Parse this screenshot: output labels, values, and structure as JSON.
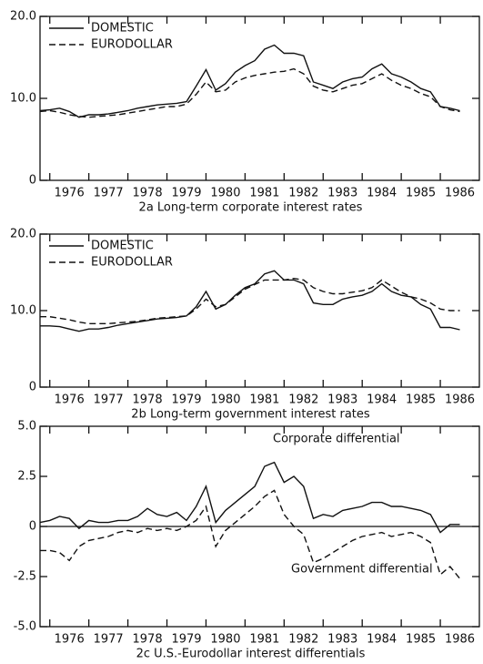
{
  "chart_data": [
    {
      "type": "line",
      "title": "2a Long-term corporate interest rates",
      "x": [
        1975.75,
        1976,
        1976.25,
        1976.5,
        1976.75,
        1977,
        1977.25,
        1977.5,
        1977.75,
        1978,
        1978.25,
        1978.5,
        1978.75,
        1979,
        1979.25,
        1979.5,
        1979.75,
        1980,
        1980.25,
        1980.5,
        1980.75,
        1981,
        1981.25,
        1981.5,
        1981.75,
        1982,
        1982.25,
        1982.5,
        1982.75,
        1983,
        1983.25,
        1983.5,
        1983.75,
        1984,
        1984.25,
        1984.5,
        1984.75,
        1985,
        1985.25,
        1985.5,
        1985.75,
        1986,
        1986.25,
        1986.5
      ],
      "series": [
        {
          "name": "DOMESTIC",
          "color": "#111111",
          "dash": false,
          "values": [
            8.5,
            8.6,
            8.8,
            8.4,
            7.7,
            8.0,
            8.0,
            8.1,
            8.3,
            8.5,
            8.8,
            9.0,
            9.2,
            9.3,
            9.4,
            9.6,
            11.5,
            13.5,
            11.0,
            11.8,
            13.2,
            14.0,
            14.6,
            16.0,
            16.5,
            15.5,
            15.5,
            15.2,
            12.0,
            11.6,
            11.2,
            12.0,
            12.4,
            12.6,
            13.6,
            14.2,
            13.0,
            12.6,
            12.0,
            11.2,
            10.8,
            9.0,
            8.8,
            8.5
          ]
        },
        {
          "name": "EURODOLLAR",
          "color": "#111111",
          "dash": true,
          "values": [
            8.4,
            8.5,
            8.3,
            8.0,
            7.8,
            7.7,
            7.8,
            7.9,
            8.0,
            8.2,
            8.4,
            8.6,
            8.8,
            9.0,
            9.0,
            9.3,
            10.5,
            12.0,
            10.8,
            11.0,
            12.0,
            12.5,
            12.8,
            13.0,
            13.2,
            13.3,
            13.6,
            13.0,
            11.5,
            11.0,
            10.8,
            11.2,
            11.6,
            11.8,
            12.4,
            13.0,
            12.2,
            11.6,
            11.2,
            10.6,
            10.2,
            9.0,
            8.6,
            8.4
          ]
        }
      ],
      "xlim": [
        1975.75,
        1987
      ],
      "xticks": [
        1976,
        1977,
        1978,
        1979,
        1980,
        1981,
        1982,
        1983,
        1984,
        1985,
        1986
      ],
      "ylim": [
        0,
        20
      ],
      "yticks": [
        0,
        {
          "value": 10,
          "label": "10.0"
        },
        {
          "value": 20,
          "label": "20.0"
        }
      ],
      "legend": "top-left"
    },
    {
      "type": "line",
      "title": "2b Long-term government interest rates",
      "x": [
        1975.75,
        1976,
        1976.25,
        1976.5,
        1976.75,
        1977,
        1977.25,
        1977.5,
        1977.75,
        1978,
        1978.25,
        1978.5,
        1978.75,
        1979,
        1979.25,
        1979.5,
        1979.75,
        1980,
        1980.25,
        1980.5,
        1980.75,
        1981,
        1981.25,
        1981.5,
        1981.75,
        1982,
        1982.25,
        1982.5,
        1982.75,
        1983,
        1983.25,
        1983.5,
        1983.75,
        1984,
        1984.25,
        1984.5,
        1984.75,
        1985,
        1985.25,
        1985.5,
        1985.75,
        1986,
        1986.25,
        1986.5
      ],
      "series": [
        {
          "name": "DOMESTIC",
          "color": "#111111",
          "dash": false,
          "values": [
            8.0,
            8.0,
            7.9,
            7.6,
            7.3,
            7.6,
            7.6,
            7.8,
            8.1,
            8.3,
            8.5,
            8.7,
            8.9,
            9.0,
            9.1,
            9.3,
            10.5,
            12.5,
            10.2,
            10.8,
            12.0,
            13.0,
            13.5,
            14.8,
            15.2,
            14.0,
            14.0,
            13.5,
            11.0,
            10.8,
            10.8,
            11.5,
            11.8,
            12.0,
            12.5,
            13.5,
            12.5,
            12.0,
            11.8,
            10.8,
            10.2,
            7.8,
            7.8,
            7.5
          ]
        },
        {
          "name": "EURODOLLAR",
          "color": "#111111",
          "dash": true,
          "values": [
            9.2,
            9.2,
            9.0,
            8.8,
            8.5,
            8.3,
            8.3,
            8.3,
            8.4,
            8.5,
            8.6,
            8.8,
            9.0,
            9.1,
            9.2,
            9.3,
            10.2,
            11.5,
            10.5,
            10.8,
            11.8,
            12.8,
            13.4,
            14.0,
            14.0,
            14.0,
            14.2,
            14.0,
            13.0,
            12.5,
            12.2,
            12.2,
            12.4,
            12.6,
            13.0,
            14.0,
            13.2,
            12.4,
            11.8,
            11.5,
            11.0,
            10.2,
            10.0,
            10.0
          ]
        }
      ],
      "xlim": [
        1975.75,
        1987
      ],
      "xticks": [
        1976,
        1977,
        1978,
        1979,
        1980,
        1981,
        1982,
        1983,
        1984,
        1985,
        1986
      ],
      "ylim": [
        0,
        20
      ],
      "yticks": [
        0,
        {
          "value": 10,
          "label": "10.0"
        },
        {
          "value": 20,
          "label": "20.0"
        }
      ],
      "legend": "top-left"
    },
    {
      "type": "line",
      "title": "2c U.S.-Eurodollar interest differentials",
      "x": [
        1975.75,
        1976,
        1976.25,
        1976.5,
        1976.75,
        1977,
        1977.25,
        1977.5,
        1977.75,
        1978,
        1978.25,
        1978.5,
        1978.75,
        1979,
        1979.25,
        1979.5,
        1979.75,
        1980,
        1980.25,
        1980.5,
        1980.75,
        1981,
        1981.25,
        1981.5,
        1981.75,
        1982,
        1982.25,
        1982.5,
        1982.75,
        1983,
        1983.25,
        1983.5,
        1983.75,
        1984,
        1984.25,
        1984.5,
        1984.75,
        1985,
        1985.25,
        1985.5,
        1985.75,
        1986,
        1986.25,
        1986.5
      ],
      "series": [
        {
          "name": "Corporate differential",
          "color": "#111111",
          "dash": false,
          "values": [
            0.2,
            0.3,
            0.5,
            0.4,
            -0.1,
            0.3,
            0.2,
            0.2,
            0.3,
            0.3,
            0.5,
            0.9,
            0.6,
            0.5,
            0.7,
            0.3,
            1.0,
            2.0,
            0.2,
            0.8,
            1.2,
            1.6,
            2.0,
            3.0,
            3.2,
            2.2,
            2.5,
            2.0,
            0.4,
            0.6,
            0.5,
            0.8,
            0.9,
            1.0,
            1.2,
            1.2,
            1.0,
            1.0,
            0.9,
            0.8,
            0.6,
            -0.3,
            0.1,
            0.1
          ]
        },
        {
          "name": "Government differential",
          "color": "#111111",
          "dash": true,
          "values": [
            -1.2,
            -1.2,
            -1.3,
            -1.7,
            -1.0,
            -0.7,
            -0.6,
            -0.5,
            -0.3,
            -0.2,
            -0.3,
            -0.1,
            -0.2,
            -0.1,
            -0.2,
            0.0,
            0.3,
            1.0,
            -1.0,
            -0.2,
            0.2,
            0.6,
            1.0,
            1.5,
            1.8,
            0.6,
            0.0,
            -0.4,
            -1.8,
            -1.6,
            -1.3,
            -1.0,
            -0.7,
            -0.5,
            -0.4,
            -0.3,
            -0.5,
            -0.4,
            -0.3,
            -0.5,
            -0.8,
            -2.4,
            -2.0,
            -2.6
          ]
        }
      ],
      "xlim": [
        1975.75,
        1987
      ],
      "xticks": [
        1976,
        1977,
        1978,
        1979,
        1980,
        1981,
        1982,
        1983,
        1984,
        1985,
        1986
      ],
      "ylim": [
        -5,
        5
      ],
      "yticks": [
        {
          "value": -5,
          "label": "-5.0"
        },
        -2.5,
        0,
        2.5,
        {
          "value": 5,
          "label": "5.0"
        }
      ],
      "legend": "annotated"
    }
  ]
}
